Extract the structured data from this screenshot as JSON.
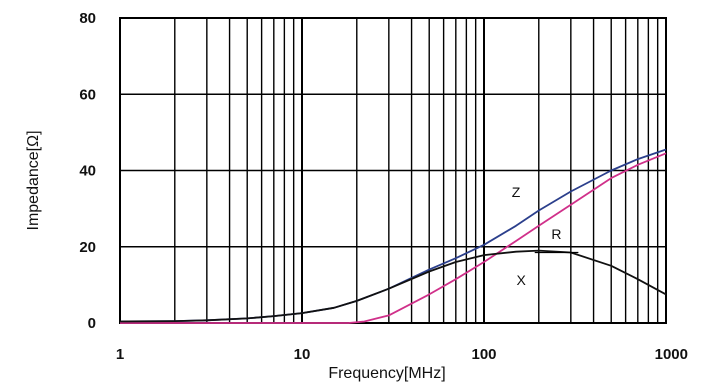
{
  "chart_data": {
    "type": "line",
    "xlabel": "Frequency[MHz]",
    "ylabel": "Impedance[Ω]",
    "x_scale": "log",
    "xlim": [
      1,
      1000
    ],
    "ylim": [
      0,
      80
    ],
    "grid": true,
    "x_ticks": [
      "1",
      "10",
      "100",
      "1000"
    ],
    "y_ticks": [
      "0",
      "20",
      "40",
      "60",
      "80"
    ],
    "series": [
      {
        "name": "Z",
        "color": "#2b3f8c",
        "x": [
          1,
          2,
          3,
          5,
          7,
          10,
          15,
          20,
          30,
          50,
          70,
          100,
          150,
          200,
          300,
          500,
          700,
          1000
        ],
        "y": [
          0.4,
          0.5,
          0.7,
          1.2,
          1.8,
          2.6,
          4.0,
          5.8,
          9.0,
          14.0,
          17.0,
          20.5,
          25.5,
          29.5,
          34.5,
          40.0,
          43.0,
          45.5
        ]
      },
      {
        "name": "R",
        "color": "#d0308a",
        "x": [
          1,
          10,
          18,
          22,
          30,
          50,
          70,
          100,
          150,
          200,
          300,
          500,
          700,
          1000
        ],
        "y": [
          0,
          0,
          0,
          0.4,
          2.0,
          7.5,
          11.5,
          16.0,
          21.5,
          25.5,
          31.0,
          38.0,
          41.5,
          44.5
        ]
      },
      {
        "name": "X",
        "color": "#111111",
        "x": [
          1,
          2,
          3,
          5,
          7,
          10,
          15,
          20,
          30,
          50,
          70,
          100,
          150,
          200,
          300,
          500,
          700,
          1000
        ],
        "y": [
          0.4,
          0.5,
          0.7,
          1.2,
          1.8,
          2.6,
          4.0,
          5.8,
          9.0,
          13.5,
          16.0,
          17.8,
          18.7,
          19.0,
          18.5,
          15.0,
          11.5,
          7.5
        ]
      }
    ]
  }
}
